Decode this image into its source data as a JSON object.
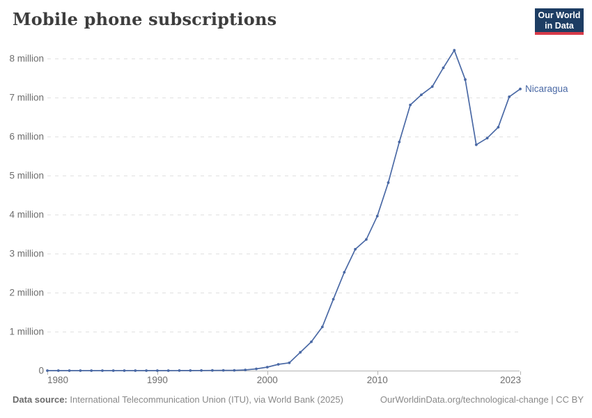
{
  "header": {
    "title": "Mobile phone subscriptions",
    "logo": {
      "line1": "Our World",
      "line2": "in Data"
    }
  },
  "chart_data": {
    "type": "line",
    "title": "Mobile phone subscriptions",
    "x": [
      1980,
      1981,
      1982,
      1983,
      1984,
      1985,
      1986,
      1987,
      1988,
      1989,
      1990,
      1991,
      1992,
      1993,
      1994,
      1995,
      1996,
      1997,
      1998,
      1999,
      2000,
      2001,
      2002,
      2003,
      2004,
      2005,
      2006,
      2007,
      2008,
      2009,
      2010,
      2011,
      2012,
      2013,
      2014,
      2015,
      2016,
      2017,
      2018,
      2019,
      2020,
      2021,
      2022,
      2023
    ],
    "series": [
      {
        "name": "Nicaragua",
        "unit": "million subscriptions",
        "values": [
          0,
          0,
          0,
          0,
          0,
          0,
          0,
          0,
          0,
          0,
          0,
          0,
          0.002,
          0.002,
          0.004,
          0.005,
          0.007,
          0.008,
          0.018,
          0.045,
          0.09,
          0.16,
          0.2,
          0.47,
          0.74,
          1.12,
          1.83,
          2.52,
          3.11,
          3.36,
          3.96,
          4.82,
          5.86,
          6.81,
          7.07,
          7.28,
          7.76,
          8.21,
          7.46,
          5.79,
          5.96,
          6.24,
          7.02,
          7.22
        ]
      }
    ],
    "x_ticks": [
      1980,
      1990,
      2000,
      2010,
      2023
    ],
    "y_ticks": [
      {
        "value": 0,
        "label": "0"
      },
      {
        "value": 1,
        "label": "1 million"
      },
      {
        "value": 2,
        "label": "2 million"
      },
      {
        "value": 3,
        "label": "3 million"
      },
      {
        "value": 4,
        "label": "4 million"
      },
      {
        "value": 5,
        "label": "5 million"
      },
      {
        "value": 6,
        "label": "6 million"
      },
      {
        "value": 7,
        "label": "7 million"
      },
      {
        "value": 8,
        "label": "8 million"
      }
    ],
    "xlim": [
      1980,
      2023
    ],
    "ylim": [
      0,
      8.4
    ],
    "grid": "horizontal-dashed",
    "legend_position": "end-of-line-label",
    "markers": true
  },
  "colors": {
    "line": "#4a69a5",
    "entity_label": "#4a69a5",
    "grid": "#e0e0e0",
    "axis": "#b3b3b3",
    "tick_label": "#6e6e6e",
    "title": "#3d3d3d",
    "logo_bg": "#1d3d63",
    "logo_stripe": "#d73a49"
  },
  "footer": {
    "source_label": "Data source:",
    "source_text": "International Telecommunication Union (ITU), via World Bank (2025)",
    "right_text": "OurWorldinData.org/technological-change | CC BY"
  }
}
